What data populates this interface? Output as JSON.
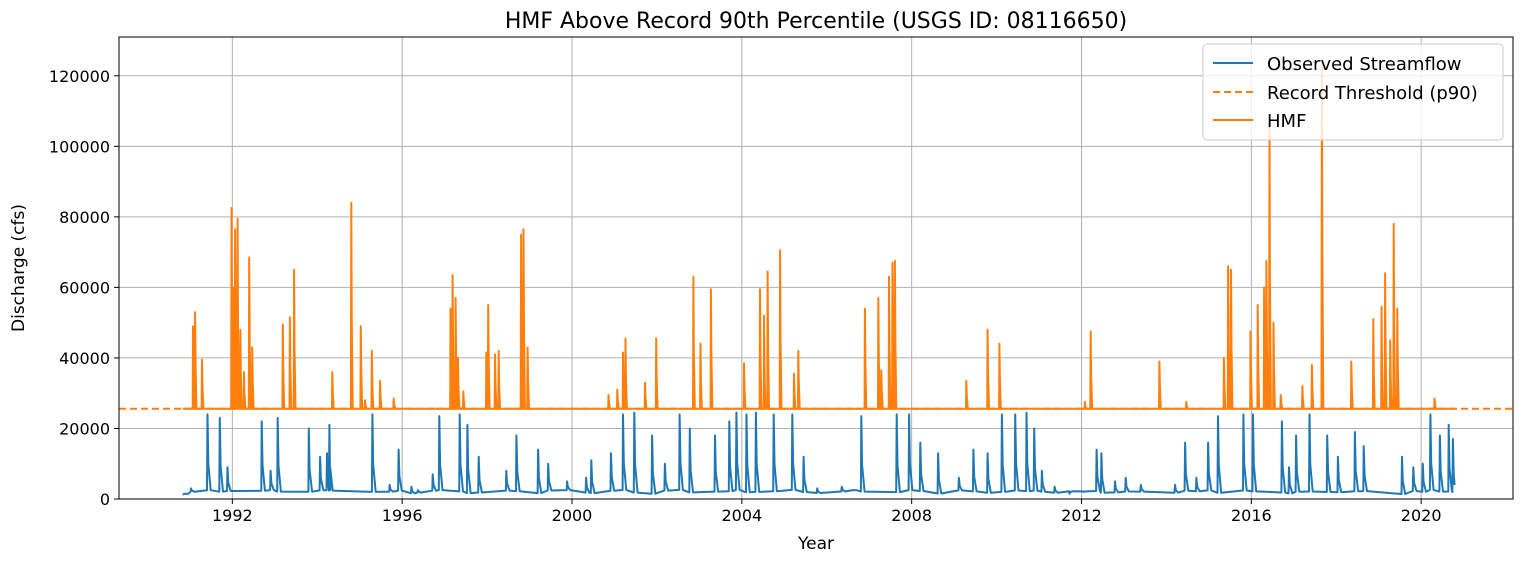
{
  "chart_data": {
    "type": "line",
    "title": "HMF Above Record 90th Percentile (USGS ID: 08116650)",
    "xlabel": "Year",
    "ylabel": "Discharge (cfs)",
    "xlim": [
      "1989-05-01",
      "2022-03-01"
    ],
    "ylim": [
      0,
      131000
    ],
    "x_ticks": [
      "1992",
      "1996",
      "2000",
      "2004",
      "2008",
      "2012",
      "2016",
      "2020"
    ],
    "y_ticks": [
      0,
      20000,
      40000,
      60000,
      80000,
      100000,
      120000
    ],
    "grid": true,
    "legend_position": "top-right",
    "colors": {
      "observed": "#1f77b4",
      "threshold": "#ff7f0e",
      "hmf": "#ff7f0e",
      "grid": "#b0b0b0"
    },
    "threshold": {
      "value": 25600,
      "x_range": [
        "1989-05-01",
        "2022-03-01"
      ]
    },
    "series": [
      {
        "name": "Observed Streamflow",
        "style": "solid",
        "events": [
          {
            "date": "1990-11-20",
            "peak": 1500
          },
          {
            "date": "1991-01-10",
            "peak": 3000
          },
          {
            "date": "1991-06-01",
            "peak": 24000
          },
          {
            "date": "1991-09-15",
            "peak": 23000
          },
          {
            "date": "1991-11-20",
            "peak": 9000
          },
          {
            "date": "1992-09-10",
            "peak": 22000
          },
          {
            "date": "1992-11-25",
            "peak": 8000
          },
          {
            "date": "1993-01-25",
            "peak": 23000
          },
          {
            "date": "1993-10-20",
            "peak": 20000
          },
          {
            "date": "1994-01-25",
            "peak": 12000
          },
          {
            "date": "1994-03-25",
            "peak": 13000
          },
          {
            "date": "1994-04-15",
            "peak": 21000
          },
          {
            "date": "1995-04-20",
            "peak": 24000
          },
          {
            "date": "1995-09-15",
            "peak": 4000
          },
          {
            "date": "1995-12-01",
            "peak": 14000
          },
          {
            "date": "1996-03-20",
            "peak": 3500
          },
          {
            "date": "1996-05-15",
            "peak": 2500
          },
          {
            "date": "1996-09-20",
            "peak": 7000
          },
          {
            "date": "1996-11-15",
            "peak": 23500
          },
          {
            "date": "1997-05-10",
            "peak": 24000
          },
          {
            "date": "1997-07-15",
            "peak": 21000
          },
          {
            "date": "1997-10-20",
            "peak": 12000
          },
          {
            "date": "1998-06-15",
            "peak": 8000
          },
          {
            "date": "1998-09-10",
            "peak": 18000
          },
          {
            "date": "1999-03-15",
            "peak": 14000
          },
          {
            "date": "1999-06-10",
            "peak": 10000
          },
          {
            "date": "1999-11-20",
            "peak": 5000
          },
          {
            "date": "2000-05-01",
            "peak": 6000
          },
          {
            "date": "2000-06-15",
            "peak": 11000
          },
          {
            "date": "2000-12-01",
            "peak": 13000
          },
          {
            "date": "2001-03-15",
            "peak": 24000
          },
          {
            "date": "2001-06-20",
            "peak": 24500
          },
          {
            "date": "2001-11-20",
            "peak": 18000
          },
          {
            "date": "2002-03-10",
            "peak": 10000
          },
          {
            "date": "2002-07-15",
            "peak": 24000
          },
          {
            "date": "2002-10-10",
            "peak": 20000
          },
          {
            "date": "2003-05-15",
            "peak": 18000
          },
          {
            "date": "2003-09-15",
            "peak": 22000
          },
          {
            "date": "2003-11-15",
            "peak": 24500
          },
          {
            "date": "2004-02-10",
            "peak": 24000
          },
          {
            "date": "2004-05-01",
            "peak": 24500
          },
          {
            "date": "2004-10-01",
            "peak": 24000
          },
          {
            "date": "2005-03-10",
            "peak": 24000
          },
          {
            "date": "2005-06-15",
            "peak": 12000
          },
          {
            "date": "2005-10-10",
            "peak": 3000
          },
          {
            "date": "2006-05-10",
            "peak": 3500
          },
          {
            "date": "2006-08-15",
            "peak": 2500
          },
          {
            "date": "2006-10-25",
            "peak": 23500
          },
          {
            "date": "2007-08-25",
            "peak": 24000
          },
          {
            "date": "2007-12-10",
            "peak": 24000
          },
          {
            "date": "2008-03-15",
            "peak": 16000
          },
          {
            "date": "2008-08-15",
            "peak": 13000
          },
          {
            "date": "2009-02-10",
            "peak": 6000
          },
          {
            "date": "2009-06-15",
            "peak": 14000
          },
          {
            "date": "2009-10-15",
            "peak": 13000
          },
          {
            "date": "2010-02-15",
            "peak": 24000
          },
          {
            "date": "2010-06-10",
            "peak": 24000
          },
          {
            "date": "2010-09-15",
            "peak": 24500
          },
          {
            "date": "2010-11-20",
            "peak": 20000
          },
          {
            "date": "2011-01-25",
            "peak": 8000
          },
          {
            "date": "2011-05-15",
            "peak": 3500
          },
          {
            "date": "2011-09-20",
            "peak": 1500
          },
          {
            "date": "2012-01-20",
            "peak": 2000
          },
          {
            "date": "2012-05-10",
            "peak": 14000
          },
          {
            "date": "2012-06-20",
            "peak": 13000
          },
          {
            "date": "2012-10-15",
            "peak": 5000
          },
          {
            "date": "2013-01-15",
            "peak": 6000
          },
          {
            "date": "2013-05-25",
            "peak": 4000
          },
          {
            "date": "2014-03-15",
            "peak": 4000
          },
          {
            "date": "2014-06-10",
            "peak": 16000
          },
          {
            "date": "2014-09-15",
            "peak": 6000
          },
          {
            "date": "2014-12-25",
            "peak": 16000
          },
          {
            "date": "2015-03-20",
            "peak": 23500
          },
          {
            "date": "2015-10-25",
            "peak": 24000
          },
          {
            "date": "2016-01-15",
            "peak": 24000
          },
          {
            "date": "2016-09-20",
            "peak": 22000
          },
          {
            "date": "2016-11-20",
            "peak": 9000
          },
          {
            "date": "2017-01-20",
            "peak": 18000
          },
          {
            "date": "2017-05-15",
            "peak": 24000
          },
          {
            "date": "2017-10-15",
            "peak": 18000
          },
          {
            "date": "2018-01-15",
            "peak": 12000
          },
          {
            "date": "2018-06-10",
            "peak": 19000
          },
          {
            "date": "2018-08-25",
            "peak": 15000
          },
          {
            "date": "2019-07-20",
            "peak": 12000
          },
          {
            "date": "2019-10-25",
            "peak": 9000
          },
          {
            "date": "2020-01-15",
            "peak": 10000
          },
          {
            "date": "2020-03-20",
            "peak": 24000
          },
          {
            "date": "2020-06-10",
            "peak": 18000
          },
          {
            "date": "2020-08-25",
            "peak": 21000
          },
          {
            "date": "2020-09-30",
            "peak": 17000
          }
        ]
      },
      {
        "name": "Record Threshold (p90)",
        "style": "dashed"
      },
      {
        "name": "HMF",
        "style": "solid",
        "events": [
          {
            "date": "1991-01-28",
            "peak": 49000
          },
          {
            "date": "1991-02-15",
            "peak": 53000
          },
          {
            "date": "1991-04-15",
            "peak": 39500
          },
          {
            "date": "1991-12-25",
            "peak": 82500
          },
          {
            "date": "1992-01-10",
            "peak": 60000
          },
          {
            "date": "1992-01-25",
            "peak": 76500
          },
          {
            "date": "1992-02-15",
            "peak": 79500
          },
          {
            "date": "1992-03-10",
            "peak": 48000
          },
          {
            "date": "1992-04-10",
            "peak": 36000
          },
          {
            "date": "1992-05-25",
            "peak": 68500
          },
          {
            "date": "1992-06-20",
            "peak": 43000
          },
          {
            "date": "1993-03-10",
            "peak": 49500
          },
          {
            "date": "1993-05-10",
            "peak": 51500
          },
          {
            "date": "1993-06-15",
            "peak": 65000
          },
          {
            "date": "1994-05-10",
            "peak": 36000
          },
          {
            "date": "1994-10-20",
            "peak": 84000
          },
          {
            "date": "1995-01-10",
            "peak": 49000
          },
          {
            "date": "1995-02-15",
            "peak": 28000
          },
          {
            "date": "1995-04-15",
            "peak": 42000
          },
          {
            "date": "1995-06-25",
            "peak": 33500
          },
          {
            "date": "1995-10-20",
            "peak": 28500
          },
          {
            "date": "1997-02-20",
            "peak": 54000
          },
          {
            "date": "1997-03-10",
            "peak": 63500
          },
          {
            "date": "1997-04-05",
            "peak": 57000
          },
          {
            "date": "1997-04-25",
            "peak": 40000
          },
          {
            "date": "1997-06-10",
            "peak": 30500
          },
          {
            "date": "1997-12-25",
            "peak": 41500
          },
          {
            "date": "1998-01-10",
            "peak": 55000
          },
          {
            "date": "1998-03-10",
            "peak": 41000
          },
          {
            "date": "1998-04-10",
            "peak": 42000
          },
          {
            "date": "1998-10-20",
            "peak": 75000
          },
          {
            "date": "1998-11-10",
            "peak": 76500
          },
          {
            "date": "1998-12-15",
            "peak": 43000
          },
          {
            "date": "2000-11-10",
            "peak": 29500
          },
          {
            "date": "2001-01-25",
            "peak": 31000
          },
          {
            "date": "2001-03-15",
            "peak": 41500
          },
          {
            "date": "2001-04-05",
            "peak": 45500
          },
          {
            "date": "2001-09-20",
            "peak": 33000
          },
          {
            "date": "2001-12-25",
            "peak": 45500
          },
          {
            "date": "2002-11-10",
            "peak": 63000
          },
          {
            "date": "2003-01-10",
            "peak": 44000
          },
          {
            "date": "2003-04-10",
            "peak": 59500
          },
          {
            "date": "2004-01-20",
            "peak": 38500
          },
          {
            "date": "2004-06-05",
            "peak": 59500
          },
          {
            "date": "2004-07-10",
            "peak": 52000
          },
          {
            "date": "2004-08-10",
            "peak": 64500
          },
          {
            "date": "2004-11-25",
            "peak": 70500
          },
          {
            "date": "2005-03-25",
            "peak": 35500
          },
          {
            "date": "2005-05-01",
            "peak": 42000
          },
          {
            "date": "2006-11-25",
            "peak": 54000
          },
          {
            "date": "2007-03-20",
            "peak": 57000
          },
          {
            "date": "2007-04-15",
            "peak": 36500
          },
          {
            "date": "2007-06-20",
            "peak": 63000
          },
          {
            "date": "2007-07-20",
            "peak": 67000
          },
          {
            "date": "2007-08-10",
            "peak": 67500
          },
          {
            "date": "2009-04-15",
            "peak": 33500
          },
          {
            "date": "2009-10-15",
            "peak": 48000
          },
          {
            "date": "2010-01-25",
            "peak": 44000
          },
          {
            "date": "2012-01-30",
            "peak": 27500
          },
          {
            "date": "2012-03-20",
            "peak": 47500
          },
          {
            "date": "2013-11-01",
            "peak": 39000
          },
          {
            "date": "2014-06-20",
            "peak": 27500
          },
          {
            "date": "2015-05-10",
            "peak": 40000
          },
          {
            "date": "2015-06-15",
            "peak": 66000
          },
          {
            "date": "2015-07-10",
            "peak": 65000
          },
          {
            "date": "2015-12-25",
            "peak": 47500
          },
          {
            "date": "2016-02-25",
            "peak": 55000
          },
          {
            "date": "2016-04-20",
            "peak": 60000
          },
          {
            "date": "2016-05-10",
            "peak": 67500
          },
          {
            "date": "2016-06-05",
            "peak": 107000
          },
          {
            "date": "2016-07-10",
            "peak": 50000
          },
          {
            "date": "2016-09-10",
            "peak": 29500
          },
          {
            "date": "2017-03-15",
            "peak": 32000
          },
          {
            "date": "2017-06-05",
            "peak": 38000
          },
          {
            "date": "2017-08-30",
            "peak": 123000
          },
          {
            "date": "2018-05-10",
            "peak": 39000
          },
          {
            "date": "2018-11-15",
            "peak": 51000
          },
          {
            "date": "2019-01-25",
            "peak": 54500
          },
          {
            "date": "2019-02-25",
            "peak": 64000
          },
          {
            "date": "2019-04-10",
            "peak": 45000
          },
          {
            "date": "2019-05-10",
            "peak": 78000
          },
          {
            "date": "2019-06-10",
            "peak": 54000
          },
          {
            "date": "2020-04-25",
            "peak": 28500
          }
        ]
      }
    ]
  }
}
